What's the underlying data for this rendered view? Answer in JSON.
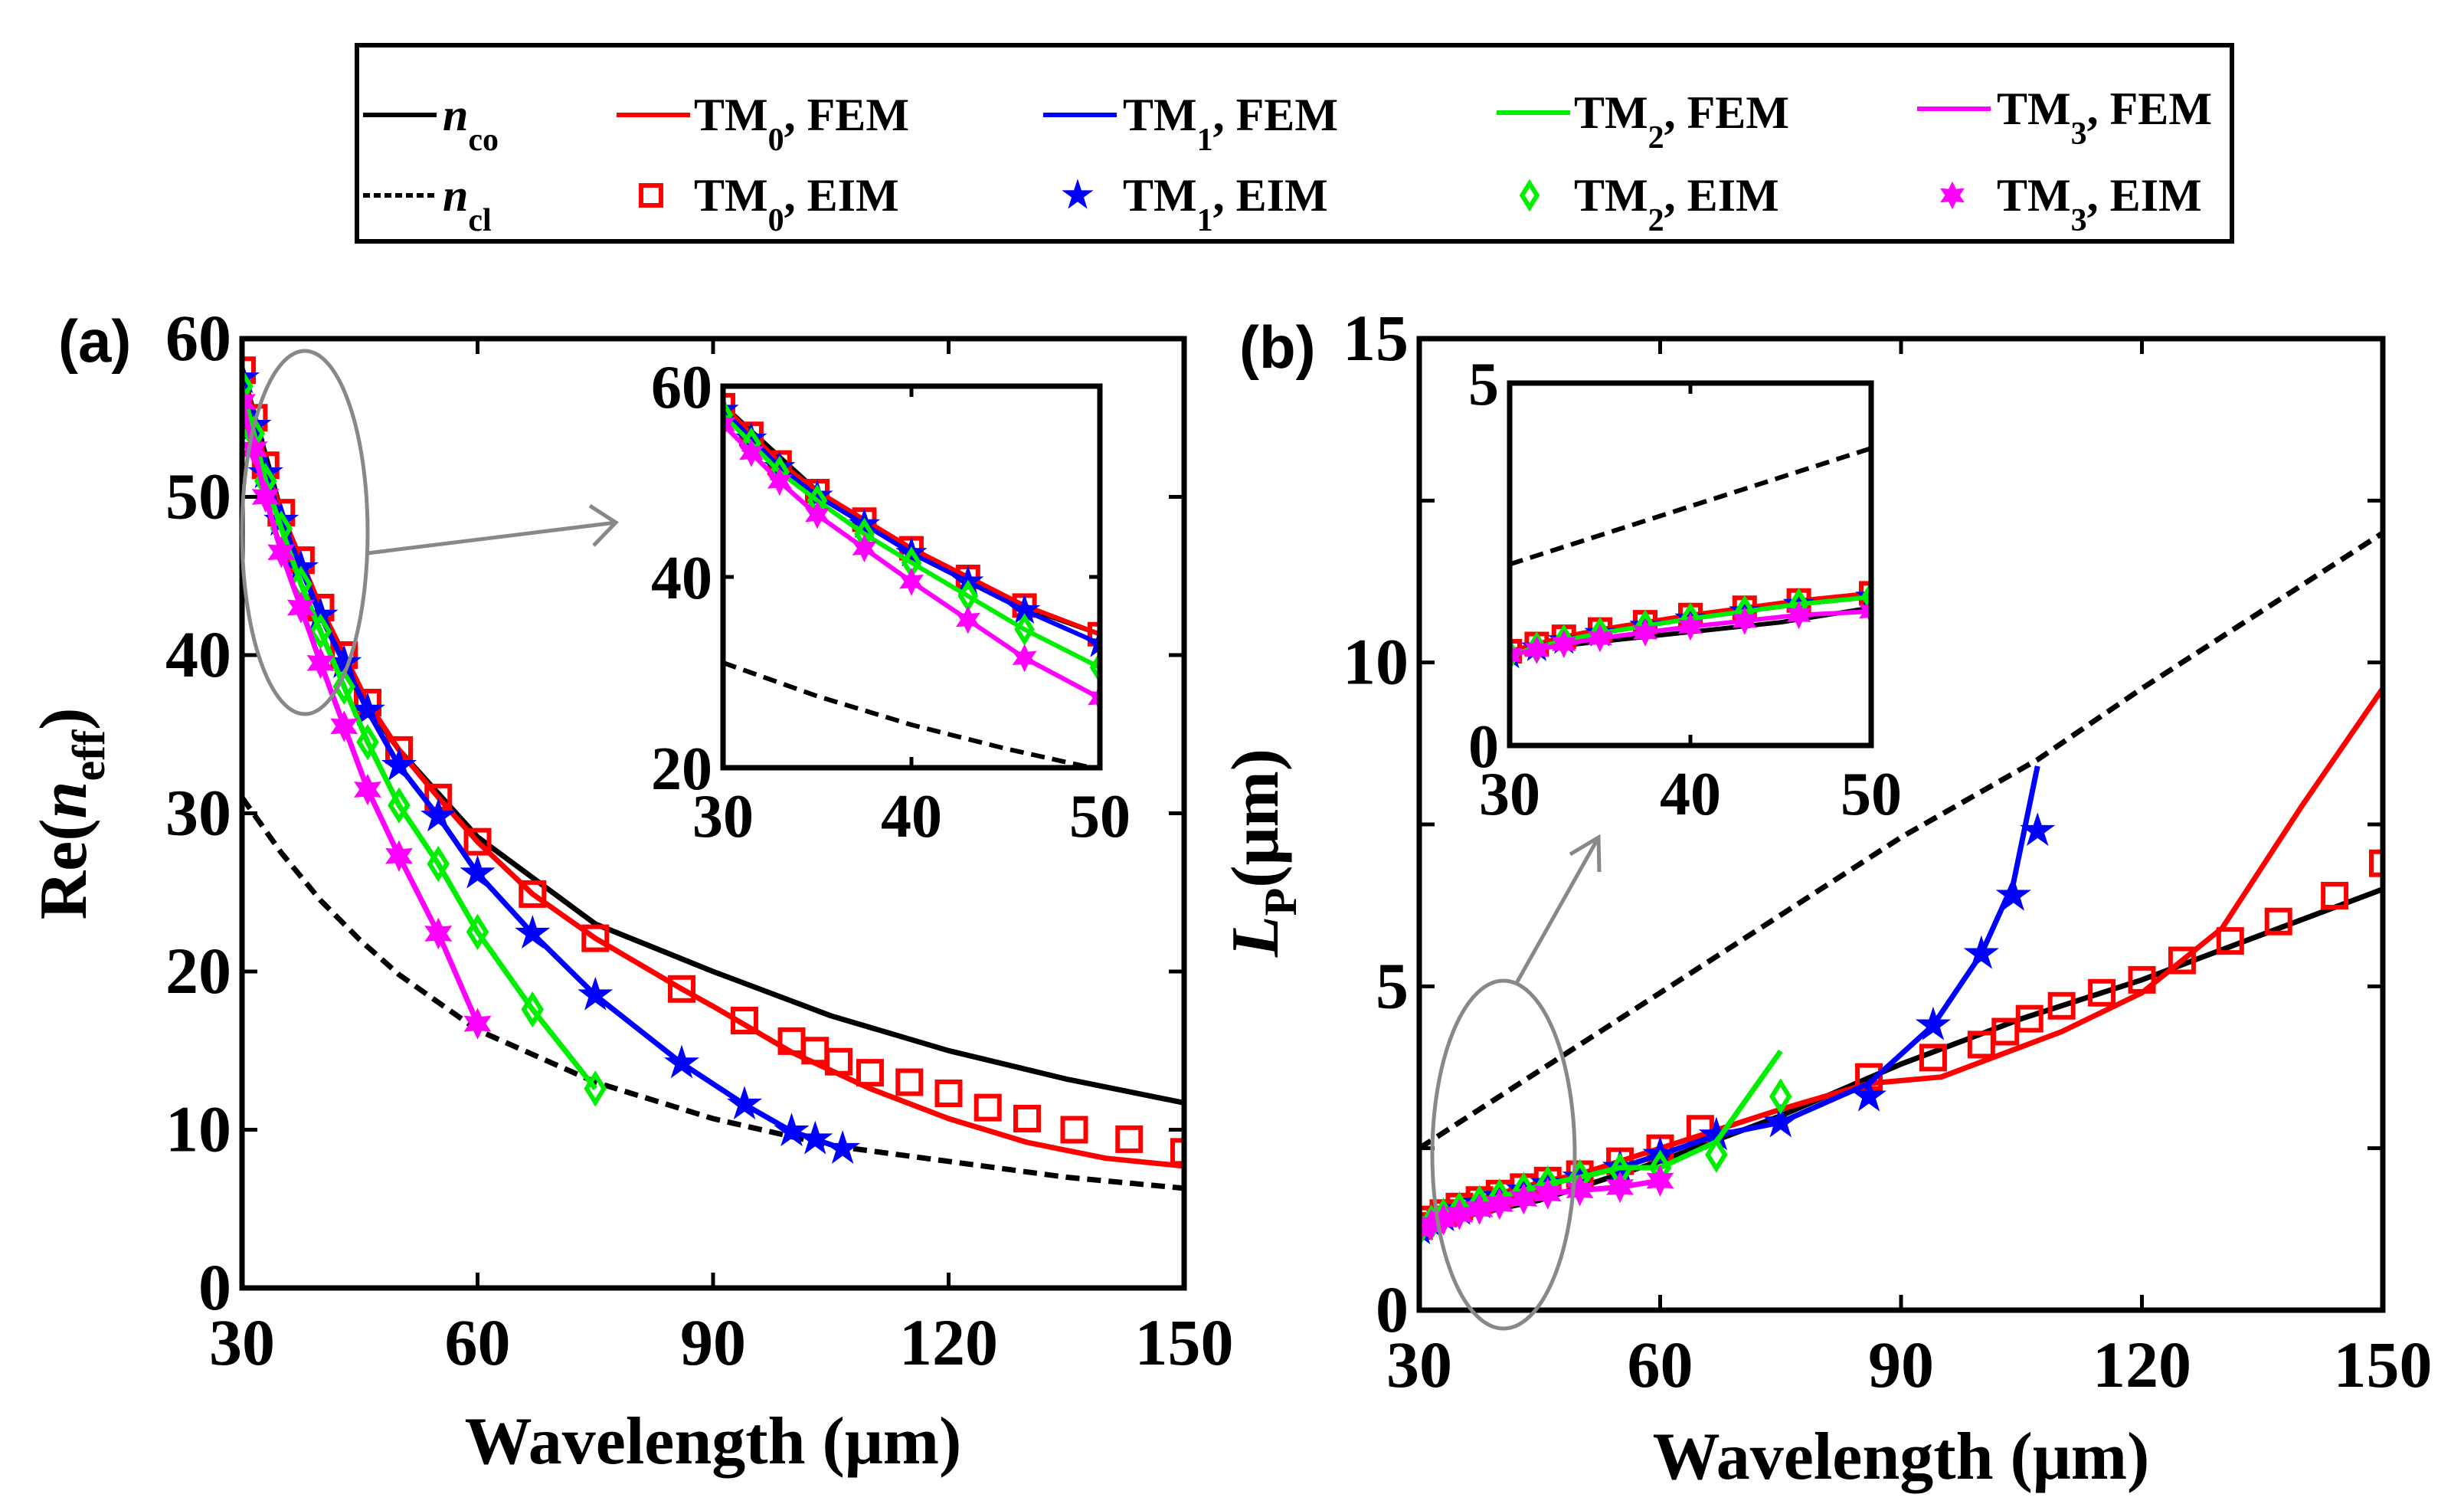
{
  "legend": {
    "entries": [
      {
        "main": "n",
        "sub": "co",
        "suffix": "",
        "color": "#000000",
        "style": "solid",
        "marker": "none"
      },
      {
        "main": "n",
        "sub": "cl",
        "suffix": "",
        "color": "#000000",
        "style": "dashed",
        "marker": "none"
      },
      {
        "main": "TM",
        "sub": "0",
        "suffix": ", FEM",
        "color": "#ff0000",
        "style": "solid",
        "marker": "none"
      },
      {
        "main": "TM",
        "sub": "0",
        "suffix": ", EIM",
        "color": "#ff0000",
        "style": "none",
        "marker": "square"
      },
      {
        "main": "TM",
        "sub": "1",
        "suffix": ", FEM",
        "color": "#0000ff",
        "style": "solid",
        "marker": "none"
      },
      {
        "main": "TM",
        "sub": "1",
        "suffix": ", EIM",
        "color": "#0000ff",
        "style": "none",
        "marker": "star"
      },
      {
        "main": "TM",
        "sub": "2",
        "suffix": ", FEM",
        "color": "#00ee00",
        "style": "solid",
        "marker": "none"
      },
      {
        "main": "TM",
        "sub": "2",
        "suffix": ", EIM",
        "color": "#00ee00",
        "style": "none",
        "marker": "diamond"
      },
      {
        "main": "TM",
        "sub": "3",
        "suffix": ", FEM",
        "color": "#ff00ff",
        "style": "solid",
        "marker": "none"
      },
      {
        "main": "TM",
        "sub": "3",
        "suffix": ", EIM",
        "color": "#ff00ff",
        "style": "none",
        "marker": "hexagram"
      }
    ]
  },
  "chart_data": [
    {
      "type": "line",
      "panel_label": "(a)",
      "xlabel": "Wavelength (μm)",
      "ylabel": {
        "main": "Re(",
        "italic": "n",
        "sub": "eff",
        "close": ")"
      },
      "xlim": [
        30,
        150
      ],
      "ylim": [
        0,
        60
      ],
      "xticks": [
        30,
        60,
        90,
        120,
        150
      ],
      "yticks": [
        0,
        10,
        20,
        30,
        40,
        50,
        60
      ],
      "series": [
        {
          "name": "n_co",
          "color": "#000000",
          "style": "solid",
          "x": [
            30,
            35,
            40,
            45,
            50,
            60,
            75,
            90,
            105,
            120,
            135,
            150
          ],
          "y": [
            58,
            49,
            42.5,
            37.5,
            34,
            28.5,
            23,
            20,
            17.2,
            15,
            13.2,
            11.7
          ]
        },
        {
          "name": "n_cl",
          "color": "#000000",
          "style": "dashed",
          "x": [
            30,
            35,
            40,
            45,
            50,
            60,
            75,
            90,
            105,
            120,
            135,
            150
          ],
          "y": [
            31,
            27.5,
            24.5,
            22,
            19.8,
            16.3,
            13,
            10.7,
            9,
            8,
            7,
            6.3
          ]
        },
        {
          "name": "TM0, FEM",
          "color": "#ff0000",
          "style": "solid",
          "x": [
            30,
            31.5,
            33,
            35,
            37.5,
            40,
            43,
            46,
            50,
            55,
            60,
            67,
            75,
            86,
            90,
            100,
            110,
            120,
            130,
            140,
            150
          ],
          "y": [
            58,
            55,
            52,
            49,
            46,
            43,
            40,
            37,
            34,
            31,
            28.2,
            24.9,
            22.1,
            18.9,
            17.8,
            14.9,
            12.6,
            10.7,
            9.2,
            8.2,
            7.7
          ]
        },
        {
          "name": "TM0, EIM",
          "color": "#ff0000",
          "marker": "square",
          "x": [
            30,
            31.5,
            33,
            35,
            37.5,
            40,
            43,
            46,
            50,
            55,
            60,
            67,
            75,
            86,
            94,
            100,
            103,
            106,
            110,
            115,
            120,
            125,
            130,
            136,
            143,
            150
          ],
          "y": [
            58,
            55,
            52,
            49,
            46,
            43,
            40,
            37,
            34,
            31,
            28.2,
            24.9,
            22.1,
            18.9,
            16.9,
            15.6,
            15,
            14.3,
            13.6,
            13,
            12.3,
            11.4,
            10.7,
            10,
            9.4,
            8.6
          ]
        },
        {
          "name": "TM1, FEM",
          "color": "#0000ff",
          "style": "solid",
          "x": [
            30,
            31.5,
            33,
            35,
            37.5,
            40,
            43,
            46,
            50,
            55,
            60,
            67,
            75,
            86,
            94,
            100,
            103,
            106.5
          ],
          "y": [
            57.5,
            54.5,
            51.5,
            48.5,
            45.5,
            42.5,
            39.5,
            36.5,
            33,
            29.8,
            26.2,
            22.4,
            18.5,
            14.2,
            11.6,
            9.9,
            9.4,
            8.8
          ]
        },
        {
          "name": "TM1, EIM",
          "color": "#0000ff",
          "marker": "star",
          "x": [
            30,
            31.5,
            33,
            35,
            37.5,
            40,
            43,
            46,
            50,
            55,
            60,
            67,
            75,
            86,
            94,
            100,
            103,
            106.5
          ],
          "y": [
            57.5,
            54.5,
            51.5,
            48.5,
            45.5,
            42.5,
            39.5,
            36.5,
            33,
            29.8,
            26.2,
            22.4,
            18.5,
            14.2,
            11.6,
            9.9,
            9.4,
            8.8
          ]
        },
        {
          "name": "TM2, FEM",
          "color": "#00ee00",
          "style": "solid",
          "x": [
            30,
            31.5,
            33,
            35,
            37.5,
            40,
            43,
            46,
            50,
            55,
            60,
            67,
            75
          ],
          "y": [
            57,
            54,
            51,
            48,
            44.5,
            41.5,
            38,
            34.5,
            30.5,
            26.8,
            22.5,
            17.6,
            12.6
          ]
        },
        {
          "name": "TM2, EIM",
          "color": "#00ee00",
          "marker": "diamond",
          "x": [
            30,
            31.5,
            33,
            35,
            37.5,
            40,
            43,
            46,
            50,
            55,
            60,
            67,
            75
          ],
          "y": [
            57,
            54,
            51,
            48,
            44.5,
            41.5,
            38,
            34.5,
            30.5,
            26.8,
            22.5,
            17.6,
            12.6
          ]
        },
        {
          "name": "TM3, FEM",
          "color": "#ff00ff",
          "style": "solid",
          "x": [
            30,
            31.5,
            33,
            35,
            37.5,
            40,
            43,
            46,
            50,
            55,
            60
          ],
          "y": [
            56,
            53,
            50,
            46.5,
            43,
            39.5,
            35.5,
            31.5,
            27.3,
            22.4,
            16.7
          ]
        },
        {
          "name": "TM3, EIM",
          "color": "#ff00ff",
          "marker": "hexagram",
          "x": [
            30,
            31.5,
            33,
            35,
            37.5,
            40,
            43,
            46,
            50,
            55,
            60
          ],
          "y": [
            56,
            53,
            50,
            46.5,
            43,
            39.5,
            35.5,
            31.5,
            27.3,
            22.4,
            16.7
          ]
        }
      ],
      "inset": {
        "xlim": [
          30,
          50
        ],
        "ylim": [
          20,
          60
        ],
        "xticks": [
          30,
          40,
          50
        ],
        "yticks": [
          20,
          40,
          60
        ]
      }
    },
    {
      "type": "line",
      "panel_label": "(b)",
      "xlabel": "Wavelength (μm)",
      "ylabel": {
        "main": "",
        "italic": "L",
        "sub": "P",
        "close": "(μm)"
      },
      "xlim": [
        30,
        150
      ],
      "ylim": [
        0,
        15
      ],
      "xticks": [
        30,
        60,
        90,
        120,
        150
      ],
      "yticks": [
        0,
        5,
        10,
        15
      ],
      "series": [
        {
          "name": "n_co",
          "color": "#000000",
          "style": "solid",
          "x": [
            30,
            45,
            60,
            75,
            90,
            105,
            120,
            135,
            150
          ],
          "y": [
            1.3,
            1.7,
            2.3,
            3.0,
            3.8,
            4.5,
            5.1,
            5.8,
            6.5
          ]
        },
        {
          "name": "n_cl",
          "color": "#000000",
          "style": "dashed",
          "x": [
            30,
            40,
            50,
            60,
            75,
            90,
            107,
            120,
            135,
            150
          ],
          "y": [
            2.5,
            3.3,
            4.1,
            4.9,
            6.1,
            7.3,
            8.5,
            9.6,
            10.8,
            12
          ]
        },
        {
          "name": "TM0, FEM",
          "color": "#ff0000",
          "style": "solid",
          "x": [
            30,
            31.5,
            33,
            35,
            37.5,
            40,
            43,
            46,
            50,
            55,
            60,
            65,
            75,
            86,
            95,
            110,
            120,
            130,
            140,
            150
          ],
          "y": [
            1.3,
            1.4,
            1.5,
            1.6,
            1.7,
            1.8,
            1.9,
            2.0,
            2.1,
            2.3,
            2.5,
            2.7,
            3.1,
            3.5,
            3.6,
            4.3,
            4.9,
            5.9,
            7.8,
            9.6
          ]
        },
        {
          "name": "TM0, EIM",
          "color": "#ff0000",
          "marker": "square",
          "x": [
            30,
            31.5,
            33,
            35,
            37.5,
            40,
            43,
            46,
            50,
            55,
            60,
            65,
            86,
            94,
            100,
            103,
            106,
            110,
            115,
            120,
            125,
            131,
            137,
            144,
            150
          ],
          "y": [
            1.3,
            1.4,
            1.5,
            1.6,
            1.7,
            1.8,
            1.9,
            2.0,
            2.1,
            2.3,
            2.5,
            2.8,
            3.6,
            3.9,
            4.1,
            4.3,
            4.5,
            4.7,
            4.9,
            5.1,
            5.4,
            5.7,
            6.0,
            6.4,
            6.9
          ]
        },
        {
          "name": "TM1, FEM",
          "color": "#0000ff",
          "style": "solid",
          "x": [
            30,
            31.5,
            33,
            35,
            37.5,
            40,
            43,
            46,
            50,
            55,
            60,
            67,
            75,
            86,
            94,
            100,
            104,
            107
          ],
          "y": [
            1.25,
            1.35,
            1.45,
            1.55,
            1.65,
            1.75,
            1.85,
            1.95,
            2.05,
            2.2,
            2.4,
            2.7,
            2.9,
            3.5,
            4.4,
            5.5,
            6.6,
            8.4
          ]
        },
        {
          "name": "TM1, EIM",
          "color": "#0000ff",
          "marker": "star",
          "x": [
            30,
            31.5,
            33,
            35,
            37.5,
            40,
            43,
            46,
            50,
            55,
            60,
            67,
            75,
            86,
            94,
            100,
            104,
            107
          ],
          "y": [
            1.25,
            1.35,
            1.45,
            1.55,
            1.65,
            1.75,
            1.85,
            1.95,
            2.05,
            2.2,
            2.4,
            2.7,
            2.9,
            3.3,
            4.4,
            5.5,
            6.4,
            7.4
          ]
        },
        {
          "name": "TM2, FEM",
          "color": "#00ee00",
          "style": "solid",
          "x": [
            30,
            31.5,
            33,
            35,
            37.5,
            40,
            43,
            46,
            50,
            55,
            60,
            67,
            75
          ],
          "y": [
            1.25,
            1.35,
            1.45,
            1.55,
            1.65,
            1.75,
            1.85,
            1.95,
            2.05,
            2.2,
            2.2,
            2.6,
            4.0
          ]
        },
        {
          "name": "TM2, EIM",
          "color": "#00ee00",
          "marker": "diamond",
          "x": [
            30,
            31.5,
            33,
            35,
            37.5,
            40,
            43,
            46,
            50,
            55,
            60,
            67,
            75
          ],
          "y": [
            1.25,
            1.35,
            1.45,
            1.55,
            1.65,
            1.75,
            1.85,
            1.95,
            2.05,
            2.15,
            2.2,
            2.4,
            3.3
          ]
        },
        {
          "name": "TM3, FEM",
          "color": "#ff00ff",
          "style": "solid",
          "x": [
            30,
            31.5,
            33,
            35,
            37.5,
            40,
            43,
            46,
            50,
            55,
            60
          ],
          "y": [
            1.25,
            1.32,
            1.4,
            1.48,
            1.56,
            1.64,
            1.72,
            1.8,
            1.85,
            1.9,
            2.0
          ]
        },
        {
          "name": "TM3, EIM",
          "color": "#ff00ff",
          "marker": "hexagram",
          "x": [
            30,
            31.5,
            33,
            35,
            37.5,
            40,
            43,
            46,
            50,
            55,
            60
          ],
          "y": [
            1.25,
            1.32,
            1.4,
            1.48,
            1.56,
            1.64,
            1.72,
            1.8,
            1.85,
            1.9,
            2.0
          ]
        }
      ],
      "inset": {
        "xlim": [
          30,
          50
        ],
        "ylim": [
          0,
          5
        ],
        "xticks": [
          30,
          40,
          50
        ],
        "yticks": [
          0,
          5
        ]
      }
    }
  ]
}
